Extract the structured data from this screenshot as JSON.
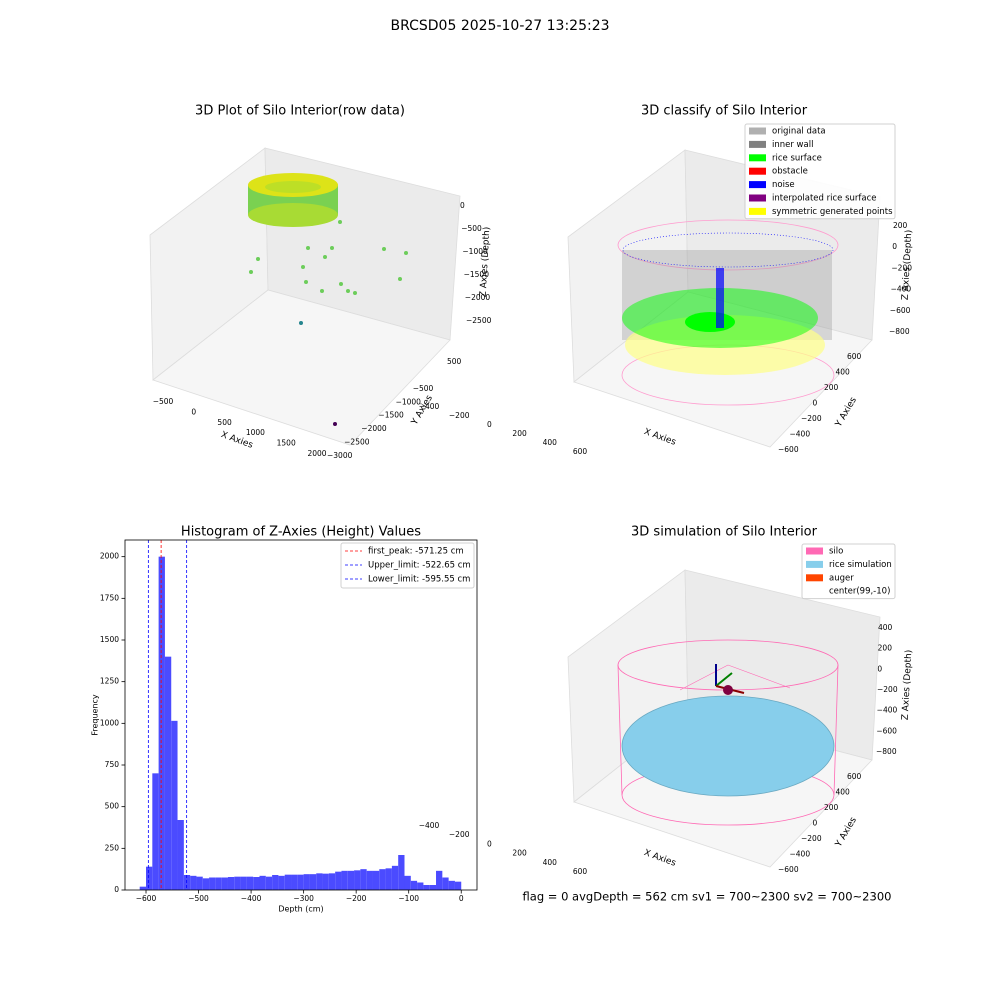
{
  "figure_title": "BRCSD05 2025-10-27 13:25:23",
  "chart_data": [
    {
      "type": "scatter3d",
      "title": "3D Plot of Silo Interior(row data)",
      "xlabel": "X Axies",
      "ylabel": "Y Axies",
      "zlabel": "Z Axies (Depth)",
      "xticks": [
        {
          "value": -500,
          "label": "−500"
        },
        0,
        500,
        1000,
        1500,
        2000
      ],
      "yticks": [
        500,
        {
          "value": -500,
          "label": "−500"
        },
        {
          "value": -1000,
          "label": "−1000"
        },
        {
          "value": -1500,
          "label": "−1500"
        },
        {
          "value": -2000,
          "label": "−2000"
        },
        {
          "value": -2500,
          "label": "−2500"
        },
        {
          "value": -3000,
          "label": "−3000"
        }
      ],
      "zticks": [
        0,
        {
          "value": -500,
          "label": "−500"
        },
        {
          "value": -1000,
          "label": "−1000"
        },
        {
          "value": -1500,
          "label": "−1500"
        },
        {
          "value": -2000,
          "label": "−2000"
        },
        {
          "value": -2500,
          "label": "−2500"
        }
      ]
    },
    {
      "type": "scatter3d",
      "title": "3D classify of Silo Interior",
      "xlabel": "X Axies",
      "ylabel": "Y Axies",
      "zlabel": "Z Axies (Depth)",
      "xticks": [
        {
          "value": -400,
          "label": "−400"
        },
        {
          "value": -200,
          "label": "−200"
        },
        0,
        200,
        400,
        600
      ],
      "yticks": [
        600,
        400,
        200,
        0,
        {
          "value": -200,
          "label": "−200"
        },
        {
          "value": -400,
          "label": "−400"
        },
        {
          "value": -600,
          "label": "−600"
        }
      ],
      "zticks": [
        200,
        0,
        {
          "value": -200,
          "label": "−200"
        },
        {
          "value": -400,
          "label": "−400"
        },
        {
          "value": -600,
          "label": "−600"
        },
        {
          "value": -800,
          "label": "−800"
        }
      ],
      "legend_loc": "upper right",
      "legend": [
        {
          "name": "original data",
          "color": "#b0b0b0"
        },
        {
          "name": "inner wall",
          "color": "#808080"
        },
        {
          "name": "rice surface",
          "color": "#00ff00"
        },
        {
          "name": "obstacle",
          "color": "#ff0000"
        },
        {
          "name": "noise",
          "color": "#0000ff"
        },
        {
          "name": "interpolated rice surface",
          "color": "#800080"
        },
        {
          "name": "symmetric generated points",
          "color": "#ffff00"
        }
      ]
    },
    {
      "type": "histogram",
      "title": "Histogram of Z-Axies (Height) Values",
      "xlabel": "Depth (cm)",
      "ylabel": "Frequency",
      "color": "#4b4bff",
      "bins": [
        -612,
        -600,
        -588,
        -576,
        -564,
        -552,
        -540,
        -528,
        -516,
        -504,
        -492,
        -480,
        -468,
        -456,
        -444,
        -432,
        -420,
        -408,
        -396,
        -384,
        -372,
        -360,
        -348,
        -336,
        -324,
        -312,
        -300,
        -288,
        -276,
        -264,
        -252,
        -240,
        -228,
        -216,
        -204,
        -192,
        -180,
        -168,
        -156,
        -144,
        -132,
        -120,
        -108,
        -96,
        -84,
        -72,
        -60,
        -48,
        -36,
        -24,
        -12,
        0
      ],
      "counts": [
        20,
        140,
        700,
        2000,
        1400,
        1015,
        420,
        90,
        85,
        80,
        70,
        75,
        75,
        75,
        78,
        80,
        80,
        80,
        78,
        85,
        80,
        90,
        85,
        92,
        92,
        92,
        95,
        95,
        100,
        98,
        100,
        110,
        115,
        115,
        118,
        125,
        115,
        115,
        125,
        130,
        145,
        210,
        85,
        55,
        45,
        30,
        30,
        115,
        75,
        55,
        50
      ],
      "xlim": [
        -640,
        30
      ],
      "ylim": [
        0,
        2100
      ],
      "xticks": [
        {
          "value": -600,
          "label": "−600"
        },
        {
          "value": -500,
          "label": "−500"
        },
        {
          "value": -400,
          "label": "−400"
        },
        {
          "value": -300,
          "label": "−300"
        },
        {
          "value": -200,
          "label": "−200"
        },
        {
          "value": -100,
          "label": "−100"
        },
        0
      ],
      "yticks": [
        0,
        250,
        500,
        750,
        1000,
        1250,
        1500,
        1750,
        2000
      ],
      "legend_loc": "upper right",
      "vlines": [
        {
          "name": "first_peak: -571.25 cm",
          "value": -571.25,
          "color": "#ff0000"
        },
        {
          "name": "Upper_limit: -522.65 cm",
          "value": -522.65,
          "color": "#0000ff"
        },
        {
          "name": "Lower_limit: -595.55 cm",
          "value": -595.55,
          "color": "#0000ff"
        }
      ]
    },
    {
      "type": "scatter3d",
      "title": "3D simulation of Silo Interior",
      "xlabel": "X Axies",
      "ylabel": "Y Axies",
      "zlabel": "Z Axies (Depth)",
      "xticks": [
        {
          "value": -400,
          "label": "−400"
        },
        {
          "value": -200,
          "label": "−200"
        },
        0,
        200,
        400,
        600
      ],
      "yticks": [
        600,
        400,
        200,
        0,
        {
          "value": -200,
          "label": "−200"
        },
        {
          "value": -400,
          "label": "−400"
        },
        {
          "value": -600,
          "label": "−600"
        }
      ],
      "zticks": [
        400,
        200,
        0,
        {
          "value": -200,
          "label": "−200"
        },
        {
          "value": -400,
          "label": "−400"
        },
        {
          "value": -600,
          "label": "−600"
        },
        {
          "value": -800,
          "label": "−800"
        }
      ],
      "legend_loc": "upper right",
      "legend": [
        {
          "name": "silo",
          "color": "#ff69b4"
        },
        {
          "name": "rice simulation",
          "color": "#87ceeb"
        },
        {
          "name": "auger",
          "color": "#ff4500"
        },
        {
          "name": "center(99,-10)"
        }
      ],
      "annotation": "flag = 0     avgDepth = 562 cm  sv1 = 700~2300  sv2 = 700~2300"
    }
  ]
}
